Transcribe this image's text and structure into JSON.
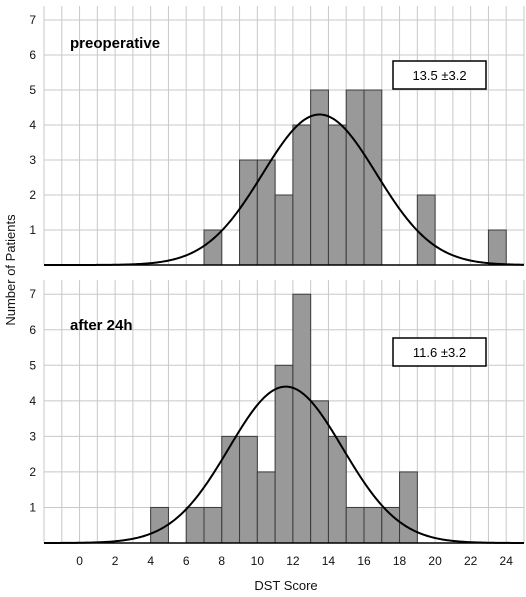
{
  "chart_data": {
    "type": "bar",
    "xlabel": "DST Score",
    "ylabel": "Number of Patients",
    "xlim": [
      -2,
      25
    ],
    "x_ticks": [
      "0",
      "2",
      "4",
      "6",
      "8",
      "10",
      "12",
      "14",
      "16",
      "18",
      "20",
      "22",
      "24"
    ],
    "y_ticks": [
      "1",
      "2",
      "3",
      "4",
      "5",
      "6",
      "7"
    ],
    "ylim": [
      0,
      7.4
    ],
    "grid": true,
    "bar_color": "#999999",
    "panels": [
      {
        "title": "preoperative",
        "stats_label": "13.5 ±3.2",
        "mean": 13.5,
        "sd": 3.2,
        "peak": 4.3,
        "x": [
          7,
          9,
          10,
          11,
          12,
          13,
          14,
          15,
          16,
          19,
          23
        ],
        "values": [
          1,
          3,
          3,
          2,
          4,
          5,
          4,
          5,
          5,
          2,
          1
        ]
      },
      {
        "title": "after 24h",
        "stats_label": "11.6 ±3.2",
        "mean": 11.6,
        "sd": 3.2,
        "peak": 4.4,
        "x": [
          4,
          6,
          7,
          8,
          9,
          10,
          11,
          12,
          13,
          14,
          15,
          16,
          17,
          18
        ],
        "values": [
          1,
          1,
          1,
          3,
          3,
          2,
          5,
          7,
          4,
          3,
          1,
          1,
          1,
          2
        ]
      }
    ]
  }
}
